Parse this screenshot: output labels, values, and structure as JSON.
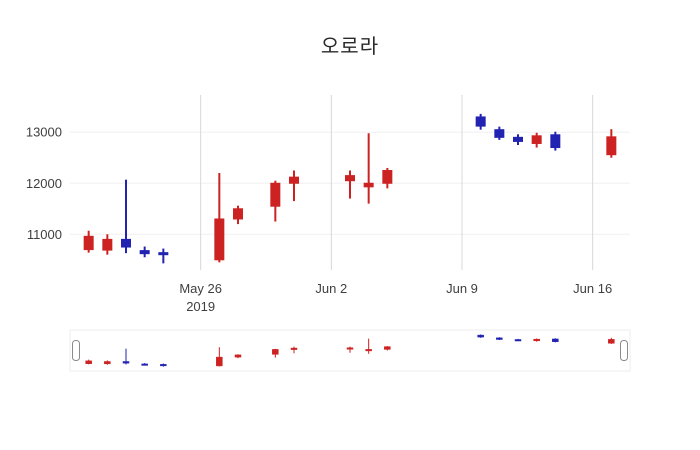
{
  "chart_data": {
    "type": "candlestick",
    "title": "오로라",
    "xlabel": "",
    "ylabel": "",
    "increasing_color": "#cc2222",
    "decreasing_color": "#2323b2",
    "grid_color_vertical": "#d8d8d8",
    "grid_color_horizontal": "#f0f0f0",
    "legend": "none",
    "rangeslider": true,
    "y_ticks": [
      11000,
      12000,
      13000
    ],
    "y_range": [
      10300,
      13730
    ],
    "x_range": [
      "2019-05-19",
      "2019-06-18"
    ],
    "x_ticks": [
      {
        "date": "2019-05-26",
        "label": "May 26",
        "sublabel": "2019"
      },
      {
        "date": "2019-06-02",
        "label": "Jun 2",
        "sublabel": ""
      },
      {
        "date": "2019-06-09",
        "label": "Jun 9",
        "sublabel": ""
      },
      {
        "date": "2019-06-16",
        "label": "Jun 16",
        "sublabel": ""
      }
    ],
    "ohlc": [
      {
        "date": "2019-05-20",
        "open": 10700,
        "high": 11070,
        "low": 10640,
        "close": 10960
      },
      {
        "date": "2019-05-21",
        "open": 10690,
        "high": 11000,
        "low": 10600,
        "close": 10900
      },
      {
        "date": "2019-05-22",
        "open": 10900,
        "high": 12070,
        "low": 10630,
        "close": 10750
      },
      {
        "date": "2019-05-23",
        "open": 10680,
        "high": 10760,
        "low": 10550,
        "close": 10620
      },
      {
        "date": "2019-05-24",
        "open": 10640,
        "high": 10720,
        "low": 10430,
        "close": 10600
      },
      {
        "date": "2019-05-27",
        "open": 10500,
        "high": 12200,
        "low": 10450,
        "close": 11300
      },
      {
        "date": "2019-05-28",
        "open": 11300,
        "high": 11560,
        "low": 11200,
        "close": 11500
      },
      {
        "date": "2019-05-30",
        "open": 11550,
        "high": 12050,
        "low": 11250,
        "close": 12000
      },
      {
        "date": "2019-05-31",
        "open": 12000,
        "high": 12250,
        "low": 11650,
        "close": 12120
      },
      {
        "date": "2019-06-03",
        "open": 12050,
        "high": 12250,
        "low": 11700,
        "close": 12150
      },
      {
        "date": "2019-06-04",
        "open": 11930,
        "high": 12980,
        "low": 11600,
        "close": 12000
      },
      {
        "date": "2019-06-05",
        "open": 12000,
        "high": 12300,
        "low": 11900,
        "close": 12250
      },
      {
        "date": "2019-06-10",
        "open": 13300,
        "high": 13360,
        "low": 13050,
        "close": 13120
      },
      {
        "date": "2019-06-11",
        "open": 13050,
        "high": 13110,
        "low": 12850,
        "close": 12900
      },
      {
        "date": "2019-06-12",
        "open": 12900,
        "high": 12960,
        "low": 12750,
        "close": 12820
      },
      {
        "date": "2019-06-13",
        "open": 12780,
        "high": 12990,
        "low": 12700,
        "close": 12930
      },
      {
        "date": "2019-06-14",
        "open": 12950,
        "high": 13010,
        "low": 12640,
        "close": 12700
      },
      {
        "date": "2019-06-17",
        "open": 12560,
        "high": 13060,
        "low": 12500,
        "close": 12910
      }
    ]
  }
}
